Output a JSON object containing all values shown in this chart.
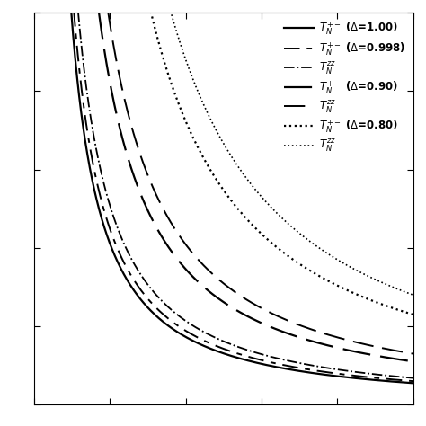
{
  "background_color": "#ffffff",
  "xlim": [
    0.0,
    1.0
  ],
  "ylim": [
    0.0,
    1.0
  ],
  "x_tick_interval": 0.2,
  "y_tick_interval": 0.2,
  "curves": [
    {
      "label": "$T_N^{+-}$ ($\\Delta$=1.00)",
      "A": 0.055,
      "n": 1.25,
      "linestyle": "solid",
      "linewidth": 1.6,
      "dashes": null
    },
    {
      "label": "$T_N^{+-}$ ($\\Delta$=0.998)",
      "A": 0.06,
      "n": 1.25,
      "linestyle": "custom",
      "linewidth": 1.4,
      "dashes": [
        9,
        4,
        3,
        4
      ]
    },
    {
      "label": "$T_N^{zz}$",
      "A": 0.068,
      "n": 1.25,
      "linestyle": "dashdot",
      "linewidth": 1.3,
      "dashes": null
    },
    {
      "label": "$T_N^{+-}$ ($\\Delta$=0.90)",
      "A": 0.11,
      "n": 1.25,
      "linestyle": "custom",
      "linewidth": 1.6,
      "dashes": [
        14,
        5
      ]
    },
    {
      "label": "$T_N^{zz}$",
      "A": 0.13,
      "n": 1.25,
      "linestyle": "custom",
      "linewidth": 1.4,
      "dashes": [
        12,
        5
      ]
    },
    {
      "label": "$T_N^{+-}$ ($\\Delta$=0.80)",
      "A": 0.23,
      "n": 1.25,
      "linestyle": "dotted",
      "linewidth": 1.6,
      "dashes": null
    },
    {
      "label": "$T_N^{zz}$",
      "A": 0.28,
      "n": 1.25,
      "linestyle": "dotted",
      "linewidth": 1.2,
      "dashes": null
    }
  ],
  "legend_loc": "upper right",
  "legend_fontsize": 8.5,
  "legend_handlelength": 2.8,
  "legend_borderpad": 0.2,
  "legend_labelspacing": 0.3
}
